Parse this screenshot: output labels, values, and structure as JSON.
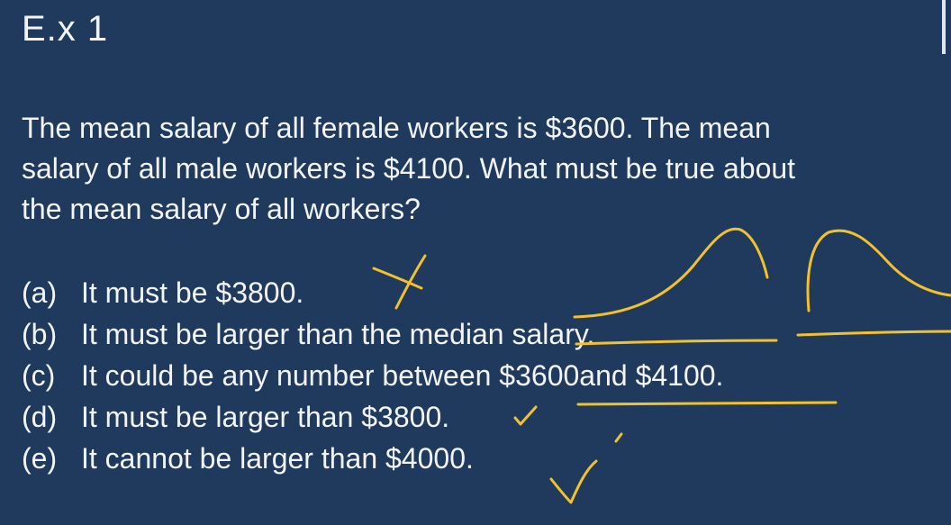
{
  "slide": {
    "title": "E.x  1"
  },
  "question": {
    "lines": [
      "The mean salary of all female workers is $3600. The mean",
      "salary of all male workers is $4100. What must be true about",
      "the mean salary of all workers?"
    ]
  },
  "options": [
    {
      "letter": "(a)",
      "text": "It must be $3800."
    },
    {
      "letter": "(b)",
      "text": "It must be larger than the median salary."
    },
    {
      "letter": "(c)",
      "text": "It could be any number between $3600and $4100."
    },
    {
      "letter": "(d)",
      "text": "It must be larger than $3800."
    },
    {
      "letter": "(e)",
      "text": "It cannot be larger than $4000."
    }
  ],
  "annotations": {
    "ink_color": "#f2c12e",
    "marks": [
      "cross-mark",
      "check-mark",
      "distribution-curve",
      "underline"
    ]
  },
  "colors": {
    "background": "#1f3a5c",
    "text": "#f2f4f7"
  }
}
